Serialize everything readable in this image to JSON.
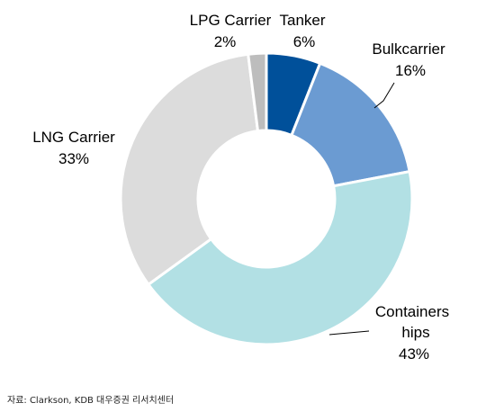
{
  "chart_data": {
    "type": "pie",
    "donut": true,
    "categories": [
      "Tanker",
      "Bulkcarrier",
      "Containers hips",
      "LNG Carrier",
      "LPG Carrier"
    ],
    "values": [
      6,
      16,
      43,
      33,
      2
    ],
    "slices": [
      {
        "name_lines": [
          "Tanker"
        ],
        "value_label": "6%",
        "color": "#00509a"
      },
      {
        "name_lines": [
          "Bulkcarrier"
        ],
        "value_label": "16%",
        "color": "#6b9bd2"
      },
      {
        "name_lines": [
          "Containers",
          "hips"
        ],
        "value_label": "43%",
        "color": "#b2e0e4"
      },
      {
        "name_lines": [
          "LNG Carrier"
        ],
        "value_label": "33%",
        "color": "#dcdcdc"
      },
      {
        "name_lines": [
          "LPG Carrier"
        ],
        "value_label": "2%",
        "color": "#bdbdbd"
      }
    ],
    "start_angle_deg": 0,
    "legend": "none"
  },
  "source_note": "자료: Clarkson, KDB 대우증권 리서치센터"
}
